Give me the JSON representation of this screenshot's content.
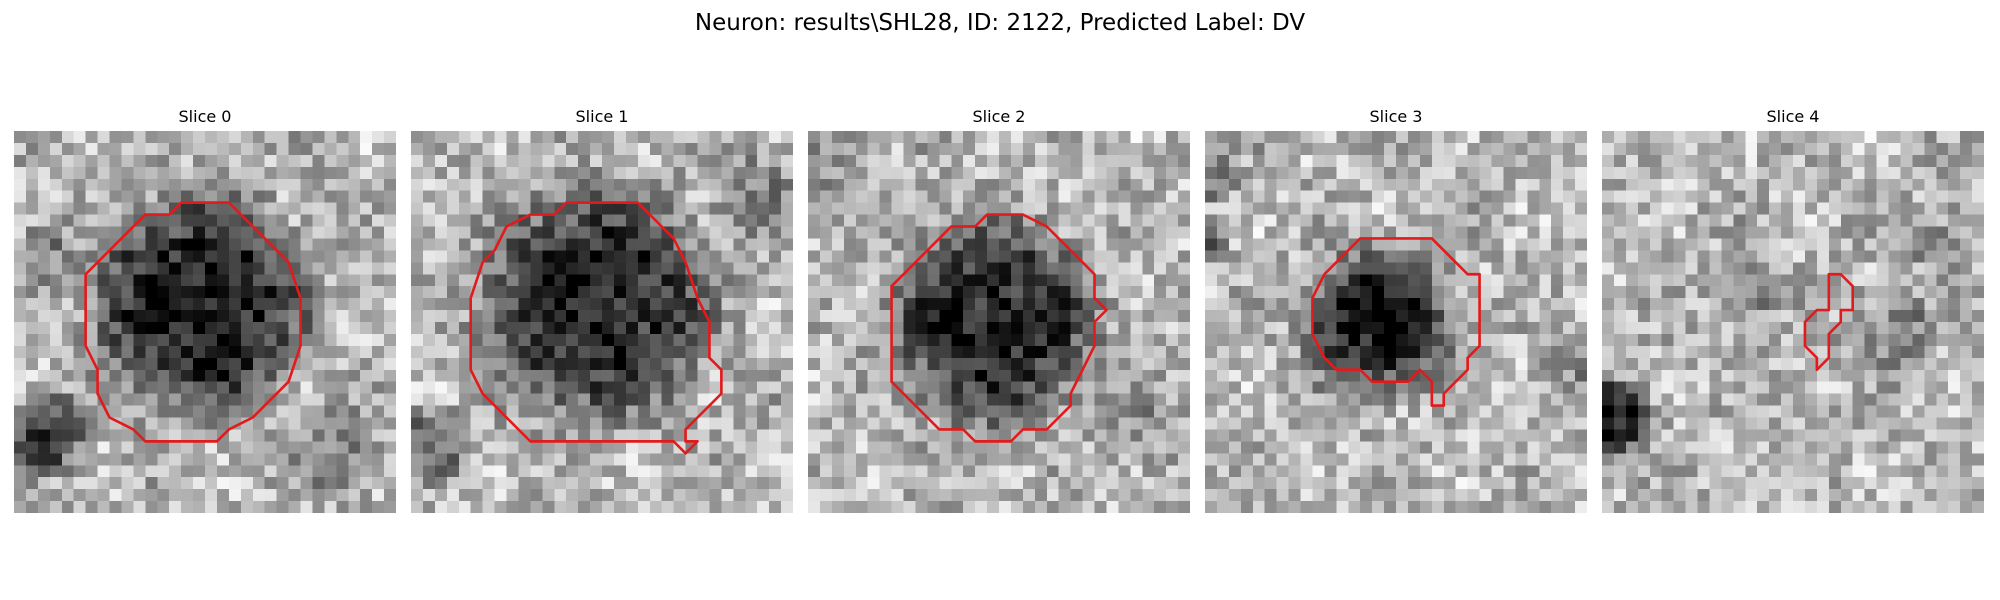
{
  "figure": {
    "title": "Neuron: results\\SHL28, ID: 2122, Predicted Label: DV",
    "contour_color": "#e31a1c",
    "colormap": "gray",
    "grid_size": 32
  },
  "panels": [
    {
      "title": "Slice 0",
      "dark_blobs": [
        [
          15.5,
          14.5,
          9.0,
          0.62
        ],
        [
          2.5,
          25.5,
          3.5,
          0.45
        ],
        [
          2.5,
          10.0,
          2.5,
          0.2
        ],
        [
          27.0,
          27.0,
          4.0,
          0.2
        ]
      ],
      "contour": [
        [
          14,
          6
        ],
        [
          18,
          6
        ],
        [
          21,
          9
        ],
        [
          23,
          11
        ],
        [
          24,
          14
        ],
        [
          24,
          18
        ],
        [
          23,
          21
        ],
        [
          21,
          23
        ],
        [
          20,
          24
        ],
        [
          18,
          25
        ],
        [
          17,
          26
        ],
        [
          11,
          26
        ],
        [
          10,
          25
        ],
        [
          8,
          24
        ],
        [
          7,
          22
        ],
        [
          7,
          20
        ],
        [
          6,
          18
        ],
        [
          6,
          12
        ],
        [
          8,
          10
        ],
        [
          9,
          9
        ],
        [
          10,
          8
        ],
        [
          11,
          7
        ],
        [
          13,
          7
        ]
      ],
      "seed": 11
    },
    {
      "title": "Slice 1",
      "dark_blobs": [
        [
          15.5,
          14.5,
          9.5,
          0.58
        ],
        [
          2.0,
          26.0,
          3.0,
          0.3
        ],
        [
          28.5,
          5.0,
          3.5,
          0.2
        ]
      ],
      "contour": [
        [
          15,
          6
        ],
        [
          19,
          6
        ],
        [
          20,
          7
        ],
        [
          21,
          8
        ],
        [
          22,
          9
        ],
        [
          23,
          11
        ],
        [
          24,
          14
        ],
        [
          25,
          16
        ],
        [
          25,
          19
        ],
        [
          26,
          20
        ],
        [
          26,
          22
        ],
        [
          25,
          23
        ],
        [
          24,
          24
        ],
        [
          23,
          25
        ],
        [
          23,
          26
        ],
        [
          24,
          26
        ],
        [
          23,
          27
        ],
        [
          22,
          26
        ],
        [
          10,
          26
        ],
        [
          8,
          24
        ],
        [
          6,
          22
        ],
        [
          5,
          20
        ],
        [
          5,
          14
        ],
        [
          6,
          11
        ],
        [
          7,
          10
        ],
        [
          8,
          8
        ],
        [
          10,
          7
        ],
        [
          12,
          7
        ],
        [
          13,
          6
        ]
      ],
      "seed": 23
    },
    {
      "title": "Slice 2",
      "dark_blobs": [
        [
          15.5,
          16.0,
          8.5,
          0.58
        ],
        [
          3.0,
          3.0,
          3.0,
          0.15
        ],
        [
          28.0,
          25.0,
          3.5,
          0.15
        ]
      ],
      "contour": [
        [
          15,
          7
        ],
        [
          18,
          7
        ],
        [
          20,
          8
        ],
        [
          21,
          9
        ],
        [
          22,
          10
        ],
        [
          23,
          11
        ],
        [
          24,
          12
        ],
        [
          24,
          14
        ],
        [
          25,
          15
        ],
        [
          24,
          16
        ],
        [
          24,
          18
        ],
        [
          23,
          20
        ],
        [
          22,
          22
        ],
        [
          22,
          23
        ],
        [
          21,
          24
        ],
        [
          20,
          25
        ],
        [
          18,
          25
        ],
        [
          17,
          26
        ],
        [
          14,
          26
        ],
        [
          13,
          25
        ],
        [
          11,
          25
        ],
        [
          9,
          23
        ],
        [
          8,
          22
        ],
        [
          7,
          21
        ],
        [
          7,
          13
        ],
        [
          8,
          12
        ],
        [
          9,
          11
        ],
        [
          10,
          10
        ],
        [
          11,
          9
        ],
        [
          12,
          8
        ],
        [
          14,
          8
        ]
      ],
      "seed": 37
    },
    {
      "title": "Slice 3",
      "dark_blobs": [
        [
          14.5,
          16.0,
          6.0,
          0.62
        ],
        [
          0.5,
          9.0,
          1.5,
          0.3
        ],
        [
          1.0,
          4.0,
          2.0,
          0.25
        ],
        [
          30.0,
          20.0,
          2.5,
          0.15
        ]
      ],
      "contour": [
        [
          14,
          9
        ],
        [
          19,
          9
        ],
        [
          21,
          11
        ],
        [
          22,
          12
        ],
        [
          23,
          12
        ],
        [
          23,
          18
        ],
        [
          22,
          19
        ],
        [
          22,
          20
        ],
        [
          20,
          22
        ],
        [
          20,
          23
        ],
        [
          19,
          23
        ],
        [
          19,
          21
        ],
        [
          18,
          20
        ],
        [
          17,
          21
        ],
        [
          14,
          21
        ],
        [
          13,
          20
        ],
        [
          11,
          20
        ],
        [
          10,
          19
        ],
        [
          9,
          17
        ],
        [
          9,
          14
        ],
        [
          10,
          12
        ],
        [
          11,
          11
        ],
        [
          12,
          10
        ],
        [
          13,
          9
        ]
      ],
      "seed": 53
    },
    {
      "title": "Slice 4",
      "dark_blobs": [
        [
          1.0,
          24.0,
          3.0,
          0.6
        ],
        [
          12.0,
          13.0,
          3.0,
          0.25
        ],
        [
          24.0,
          17.0,
          4.0,
          0.2
        ],
        [
          28.0,
          9.0,
          3.0,
          0.15
        ]
      ],
      "contour": [
        [
          19,
          12
        ],
        [
          20,
          12
        ],
        [
          21,
          13
        ],
        [
          21,
          15
        ],
        [
          20,
          15
        ],
        [
          20,
          16
        ],
        [
          19,
          17
        ],
        [
          19,
          19
        ],
        [
          18,
          20
        ],
        [
          18,
          19
        ],
        [
          17,
          18
        ],
        [
          17,
          16
        ],
        [
          18,
          15
        ],
        [
          19,
          15
        ],
        [
          19,
          13
        ],
        [
          19,
          12
        ]
      ],
      "seed": 71
    }
  ]
}
